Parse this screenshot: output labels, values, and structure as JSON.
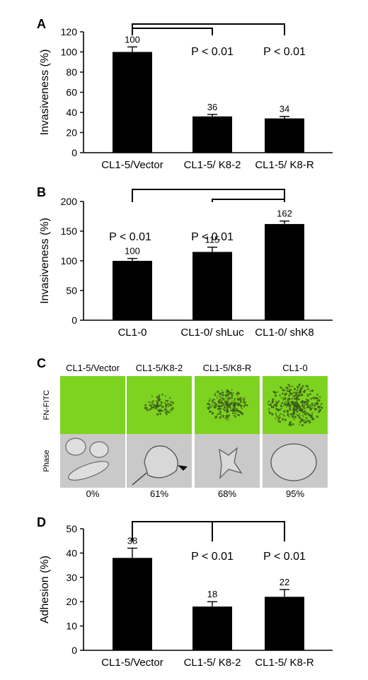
{
  "chart_data": [
    {
      "panel": "A",
      "type": "bar",
      "ylabel": "Invasiveness (%)",
      "ylim": [
        0,
        120
      ],
      "yticks": [
        0,
        20,
        40,
        60,
        80,
        100,
        120
      ],
      "categories": [
        "CL1-5/Vector",
        "CL1-5/ K8-2",
        "CL1-5/ K8-R"
      ],
      "values": [
        100,
        36,
        34
      ],
      "errors": [
        5,
        2,
        2
      ],
      "value_labels": [
        "100",
        "36",
        "34"
      ],
      "significance": [
        "P < 0.01",
        "P < 0.01"
      ]
    },
    {
      "panel": "B",
      "type": "bar",
      "ylabel": "Invasiveness (%)",
      "ylim": [
        0,
        200
      ],
      "yticks": [
        0,
        50,
        100,
        150,
        200
      ],
      "categories": [
        "CL1-0",
        "CL1-0/ shLuc",
        "CL1-0/ shK8"
      ],
      "values": [
        100,
        115,
        162
      ],
      "errors": [
        4,
        8,
        5
      ],
      "value_labels": [
        "100",
        "115",
        "162"
      ],
      "significance": [
        "P < 0.01",
        "P < 0.01"
      ]
    },
    {
      "panel": "D",
      "type": "bar",
      "ylabel": "Adhesion (%)",
      "ylim": [
        0,
        50
      ],
      "yticks": [
        0,
        10,
        20,
        30,
        40,
        50
      ],
      "categories": [
        "CL1-5/Vector",
        "CL1-5/ K8-2",
        "CL1-5/ K8-R"
      ],
      "values": [
        38,
        18,
        22
      ],
      "errors": [
        4,
        2,
        3
      ],
      "value_labels": [
        "38",
        "18",
        "22"
      ],
      "significance": [
        "P < 0.01",
        "P < 0.01"
      ]
    }
  ],
  "panel_labels": {
    "a": "A",
    "b": "B",
    "c": "C",
    "d": "D"
  },
  "panel_c": {
    "columns": [
      "CL1-5/Vector",
      "CL1-5/K8-2",
      "CL1-5/K8-R",
      "CL1-0"
    ],
    "row_labels": [
      "FN-FITC",
      "Phase"
    ],
    "percentages": [
      "0%",
      "61%",
      "68%",
      "95%"
    ]
  },
  "colors": {
    "bar": "#000000",
    "fitc_green": "#7ed321",
    "phase_gray": "#c9c9c9"
  }
}
